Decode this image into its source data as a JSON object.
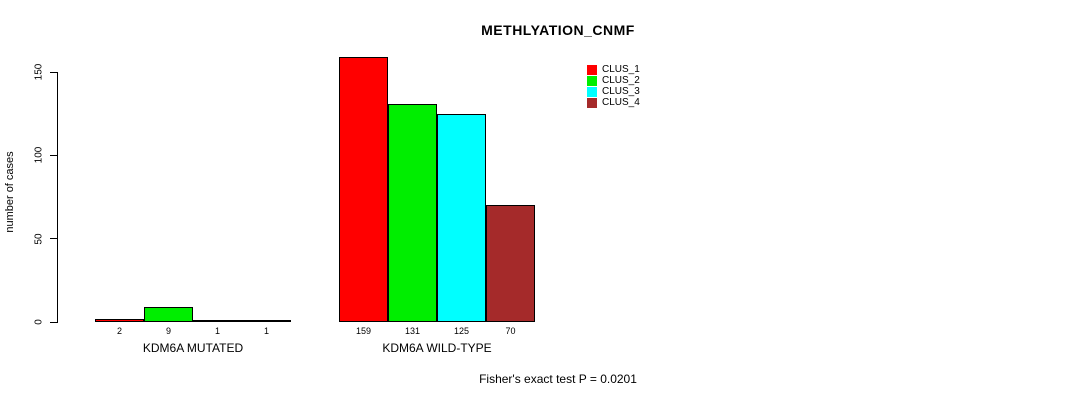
{
  "chart_data": {
    "type": "bar",
    "title": "METHLYATION_CNMF",
    "ylabel": "number of cases",
    "footnote": "Fisher's exact test P = 0.0201",
    "yticks": [
      0,
      50,
      100,
      150
    ],
    "ylim": [
      0,
      150
    ],
    "grid": false,
    "legend_position": "top-right",
    "categories": [
      "KDM6A MUTATED",
      "KDM6A WILD-TYPE"
    ],
    "groups": [
      {
        "label": "KDM6A MUTATED",
        "values": [
          2,
          9,
          1,
          1
        ],
        "value_labels": [
          "2",
          "9",
          "1",
          "1"
        ]
      },
      {
        "label": "KDM6A WILD-TYPE",
        "values": [
          159,
          131,
          125,
          70
        ],
        "value_labels": [
          "159",
          "131",
          "125",
          "70"
        ]
      }
    ],
    "series": [
      {
        "name": "CLUS_1",
        "color": "#ff0000"
      },
      {
        "name": "CLUS_2",
        "color": "#00ee00"
      },
      {
        "name": "CLUS_3",
        "color": "#00ffff"
      },
      {
        "name": "CLUS_4",
        "color": "#a52a2a"
      }
    ]
  }
}
